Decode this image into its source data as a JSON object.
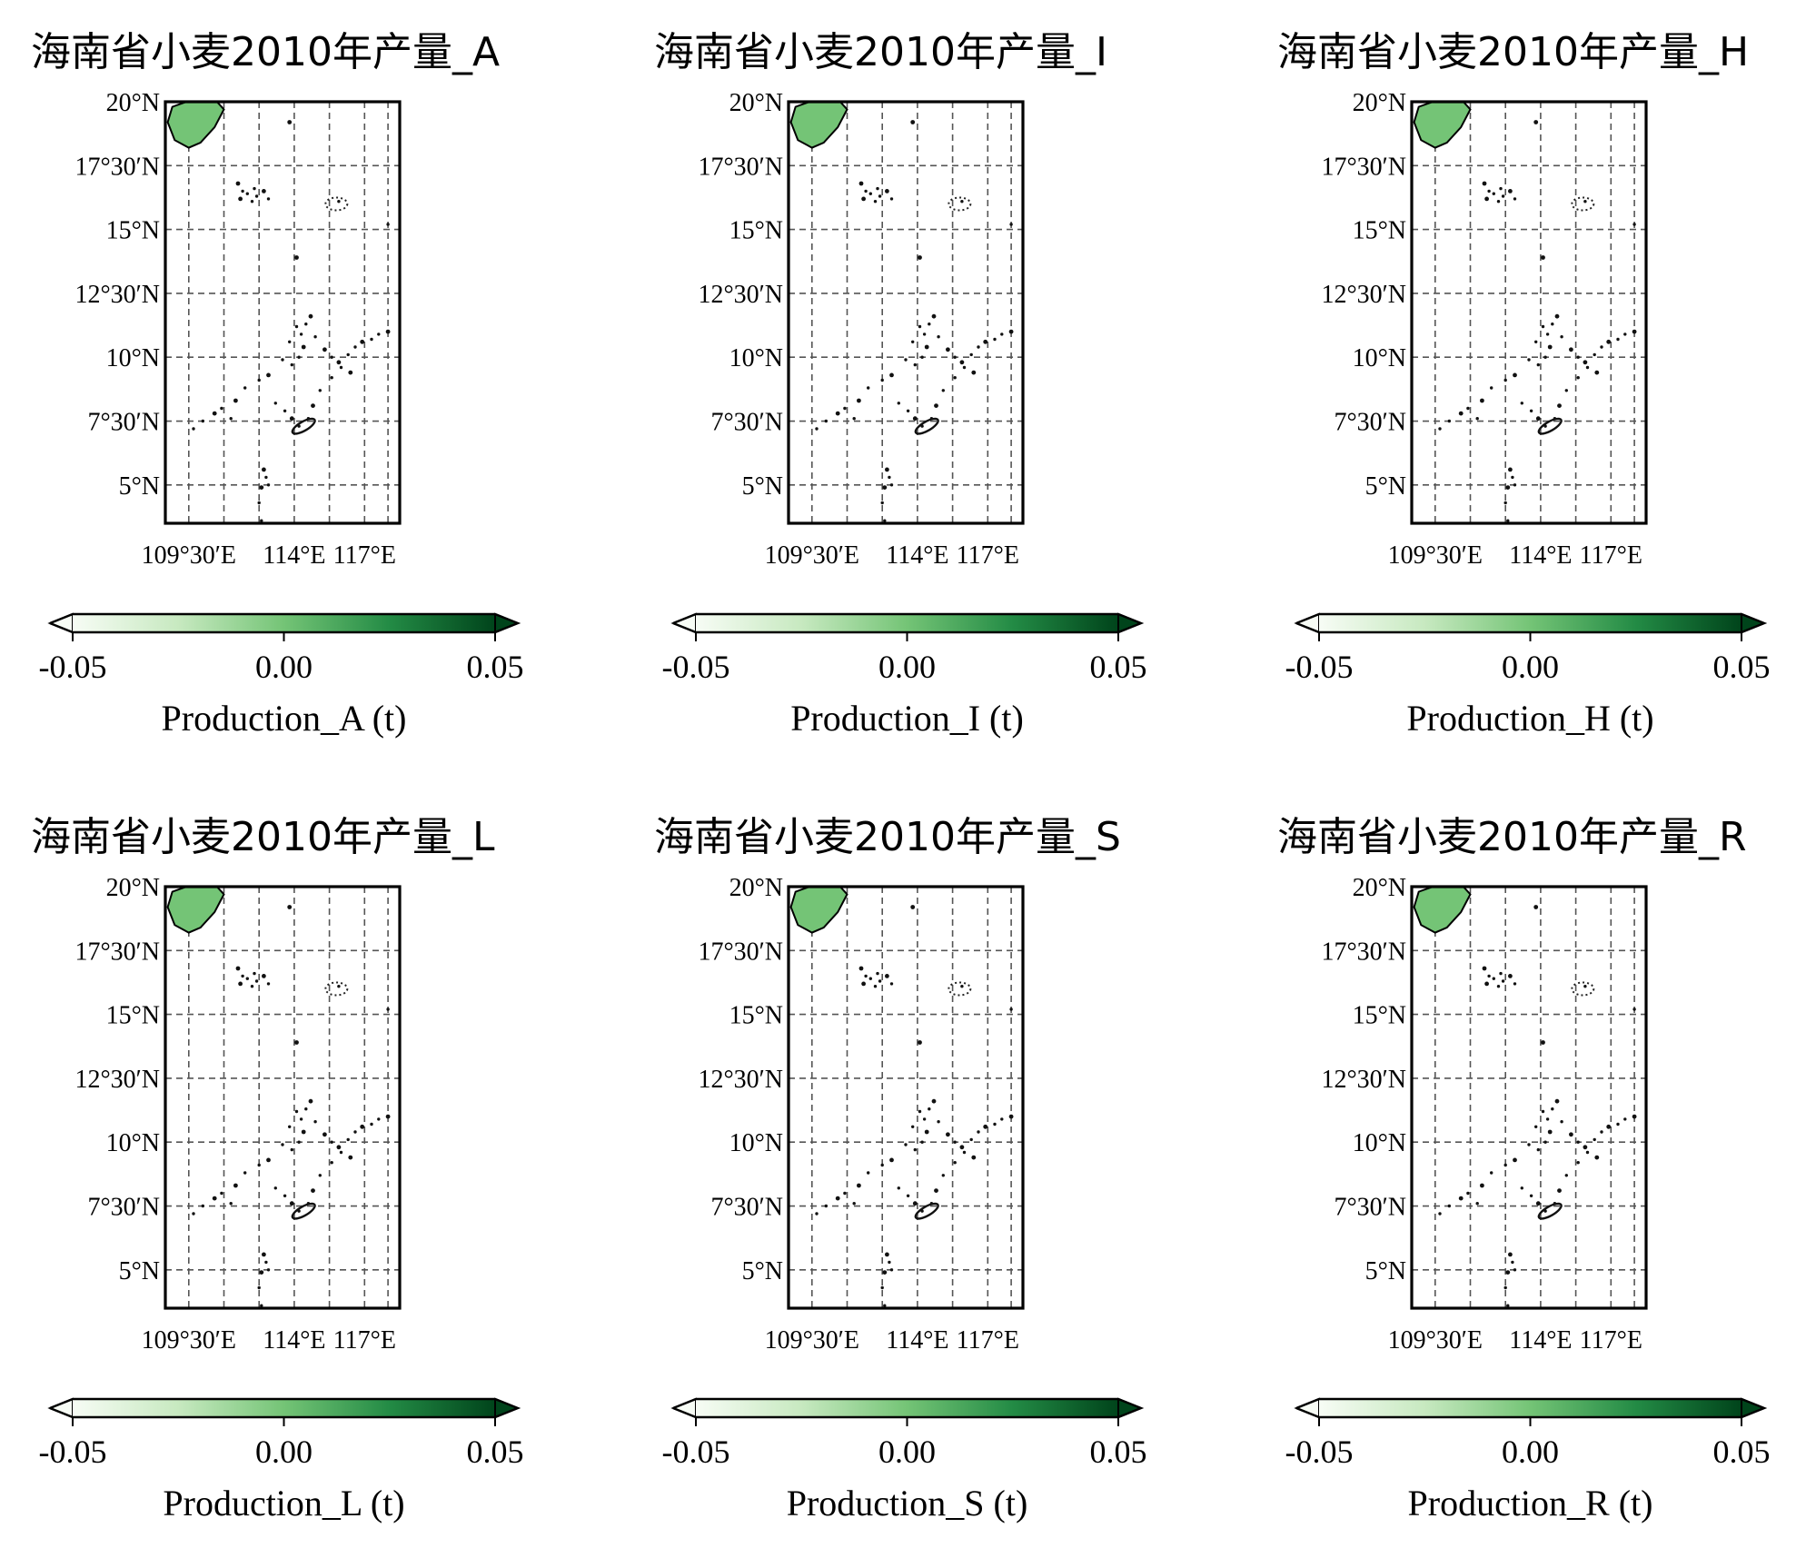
{
  "colormap": {
    "name": "Greens",
    "stops": [
      "#f7fcf5",
      "#c7e9c0",
      "#74c476",
      "#238b45",
      "#00441b"
    ],
    "island_fill": "#74c476"
  },
  "map_extent": {
    "lon": [
      108.5,
      118.5
    ],
    "lat": [
      3.5,
      20.0
    ]
  },
  "lat_ticks": [
    {
      "value": 20.0,
      "label": "20°N"
    },
    {
      "value": 17.5,
      "label": "17°30′N"
    },
    {
      "value": 15.0,
      "label": "15°N"
    },
    {
      "value": 12.5,
      "label": "12°30′N"
    },
    {
      "value": 10.0,
      "label": "10°N"
    },
    {
      "value": 7.5,
      "label": "7°30′N"
    },
    {
      "value": 5.0,
      "label": "5°N"
    }
  ],
  "lon_ticks": [
    {
      "value": 109.5,
      "label": "109°30′E"
    },
    {
      "value": 114.0,
      "label": "114°E"
    },
    {
      "value": 117.0,
      "label": "117°E"
    }
  ],
  "lon_gridlines": [
    109.5,
    111.0,
    112.5,
    114.0,
    115.5,
    117.0,
    118.0
  ],
  "lat_gridlines": [
    20.0,
    17.5,
    15.0,
    12.5,
    10.0,
    7.5,
    5.0
  ],
  "colorbar": {
    "ticks": [
      "-0.05",
      "0.00",
      "0.05"
    ],
    "tick_values": [
      -0.05,
      0.0,
      0.05
    ],
    "extend": "both"
  },
  "features": {
    "hainan_island": {
      "outline": [
        [
          108.6,
          19.2
        ],
        [
          108.8,
          19.8
        ],
        [
          109.4,
          20.0
        ],
        [
          110.0,
          20.1
        ],
        [
          110.7,
          20.0
        ],
        [
          111.0,
          19.7
        ],
        [
          110.6,
          19.0
        ],
        [
          110.0,
          18.4
        ],
        [
          109.5,
          18.2
        ],
        [
          108.9,
          18.5
        ],
        [
          108.6,
          19.2
        ]
      ]
    },
    "islets": [
      [
        111.6,
        16.8
      ],
      [
        111.8,
        16.5
      ],
      [
        112.0,
        16.4
      ],
      [
        111.7,
        16.2
      ],
      [
        112.3,
        16.6
      ],
      [
        112.4,
        16.3
      ],
      [
        112.7,
        16.5
      ],
      [
        112.2,
        16.1
      ],
      [
        112.9,
        16.2
      ],
      [
        113.8,
        19.2
      ],
      [
        115.9,
        16.1
      ],
      [
        118.0,
        15.2
      ],
      [
        114.1,
        13.9
      ],
      [
        109.7,
        7.2
      ],
      [
        110.1,
        7.5
      ],
      [
        110.6,
        7.8
      ],
      [
        110.9,
        8.0
      ],
      [
        111.3,
        7.6
      ],
      [
        111.5,
        8.3
      ],
      [
        111.9,
        8.8
      ],
      [
        112.5,
        9.1
      ],
      [
        112.9,
        9.3
      ],
      [
        113.2,
        8.2
      ],
      [
        113.6,
        7.9
      ],
      [
        113.9,
        7.6
      ],
      [
        114.2,
        7.3
      ],
      [
        114.6,
        7.6
      ],
      [
        114.8,
        8.1
      ],
      [
        115.1,
        8.7
      ],
      [
        115.6,
        9.2
      ],
      [
        115.9,
        9.8
      ],
      [
        116.3,
        10.1
      ],
      [
        116.6,
        10.4
      ],
      [
        116.9,
        10.6
      ],
      [
        117.3,
        10.7
      ],
      [
        117.6,
        10.9
      ],
      [
        118.0,
        11.0
      ],
      [
        113.9,
        9.7
      ],
      [
        114.2,
        10.0
      ],
      [
        114.4,
        10.4
      ],
      [
        114.3,
        10.9
      ],
      [
        114.5,
        11.3
      ],
      [
        114.7,
        11.6
      ],
      [
        114.1,
        11.2
      ],
      [
        114.9,
        10.8
      ],
      [
        115.3,
        10.3
      ],
      [
        115.6,
        10.0
      ],
      [
        116.0,
        9.6
      ],
      [
        116.4,
        9.4
      ],
      [
        113.8,
        10.6
      ],
      [
        113.5,
        9.9
      ],
      [
        112.7,
        5.6
      ],
      [
        112.8,
        5.3
      ],
      [
        112.9,
        5.0
      ],
      [
        112.6,
        4.9
      ],
      [
        112.5,
        4.3
      ],
      [
        112.6,
        3.6
      ]
    ]
  },
  "panels": [
    {
      "title": "海南省小麦2010年产量_A",
      "colorbar_label": "Production_A (t)"
    },
    {
      "title": "海南省小麦2010年产量_I",
      "colorbar_label": "Production_I (t)"
    },
    {
      "title": "海南省小麦2010年产量_H",
      "colorbar_label": "Production_H (t)"
    },
    {
      "title": "海南省小麦2010年产量_L",
      "colorbar_label": "Production_L (t)"
    },
    {
      "title": "海南省小麦2010年产量_S",
      "colorbar_label": "Production_S (t)"
    },
    {
      "title": "海南省小麦2010年产量_R",
      "colorbar_label": "Production_R (t)"
    }
  ]
}
